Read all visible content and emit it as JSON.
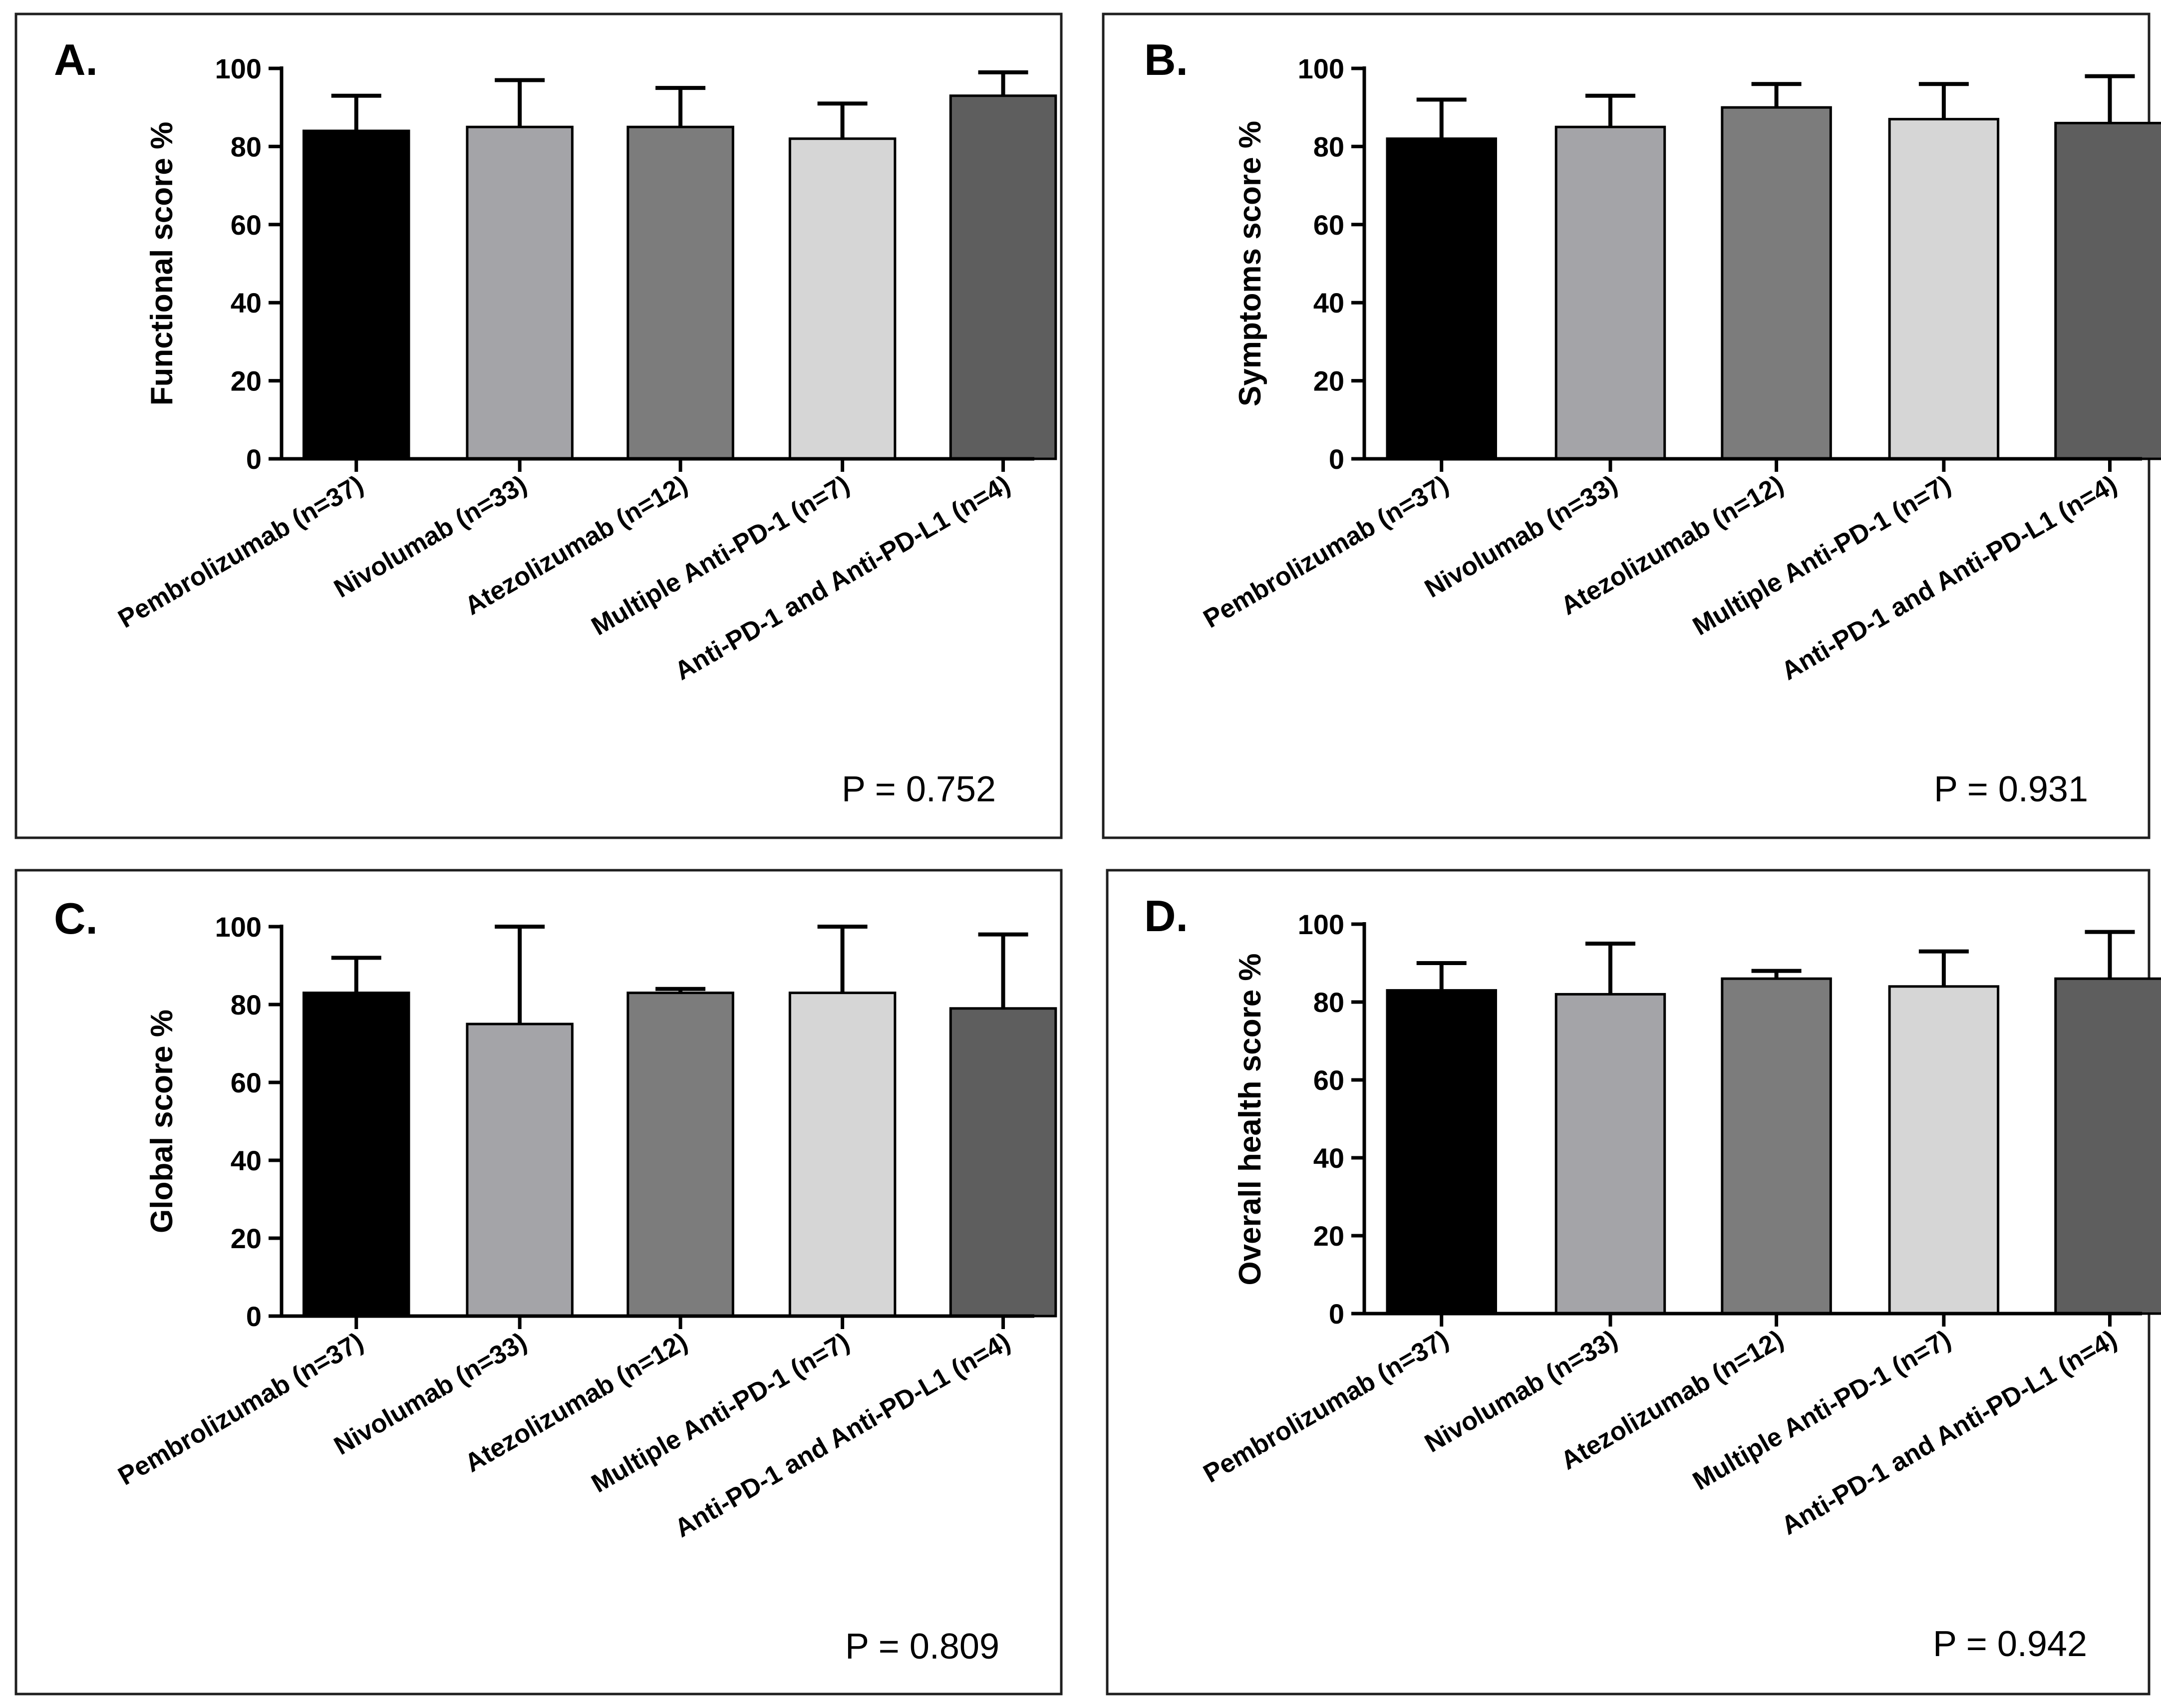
{
  "chart_data": [
    {
      "type": "bar",
      "panel": "A.",
      "title": "",
      "xlabel": "",
      "ylabel": "Functional score %",
      "ylim": [
        0,
        100
      ],
      "yticks": [
        "0",
        "20",
        "40",
        "60",
        "80",
        "100"
      ],
      "categories": [
        "Pembrolizumab (n=37)",
        "Nivolumab (n=33)",
        "Atezolizumab (n=12)",
        "Multiple Anti-PD-1 (n=7)",
        "Anti-PD-1 and Anti-PD-L1 (n=4)"
      ],
      "values": [
        84,
        85,
        85,
        82,
        93
      ],
      "error_upper": [
        93,
        97,
        95,
        91,
        99
      ],
      "colors": [
        "#000000",
        "#a4a4a8",
        "#7c7c7c",
        "#d6d6d6",
        "#5e5e5e"
      ],
      "annotation": "P = 0.752"
    },
    {
      "type": "bar",
      "panel": "B.",
      "title": "",
      "xlabel": "",
      "ylabel": "Symptoms score %",
      "ylim": [
        0,
        100
      ],
      "yticks": [
        "0",
        "20",
        "40",
        "60",
        "80",
        "100"
      ],
      "categories": [
        "Pembrolizumab (n=37)",
        "Nivolumab (n=33)",
        "Atezolizumab (n=12)",
        "Multiple Anti-PD-1 (n=7)",
        "Anti-PD-1 and Anti-PD-L1 (n=4)"
      ],
      "values": [
        82,
        85,
        90,
        87,
        86
      ],
      "error_upper": [
        92,
        93,
        96,
        96,
        98
      ],
      "colors": [
        "#000000",
        "#a4a4a8",
        "#7c7c7c",
        "#d6d6d6",
        "#5e5e5e"
      ],
      "annotation": "P = 0.931"
    },
    {
      "type": "bar",
      "panel": "C.",
      "title": "",
      "xlabel": "",
      "ylabel": "Global score %",
      "ylim": [
        0,
        100
      ],
      "yticks": [
        "0",
        "20",
        "40",
        "60",
        "80",
        "100"
      ],
      "categories": [
        "Pembrolizumab (n=37)",
        "Nivolumab (n=33)",
        "Atezolizumab (n=12)",
        "Multiple Anti-PD-1 (n=7)",
        "Anti-PD-1 and Anti-PD-L1 (n=4)"
      ],
      "values": [
        83,
        75,
        83,
        83,
        79
      ],
      "error_upper": [
        92,
        100,
        84,
        100,
        98
      ],
      "colors": [
        "#000000",
        "#a4a4a8",
        "#7c7c7c",
        "#d6d6d6",
        "#5e5e5e"
      ],
      "annotation": "P = 0.809"
    },
    {
      "type": "bar",
      "panel": "D.",
      "title": "",
      "xlabel": "",
      "ylabel": "Overall health score %",
      "ylim": [
        0,
        100
      ],
      "yticks": [
        "0",
        "20",
        "40",
        "60",
        "80",
        "100"
      ],
      "categories": [
        "Pembrolizumab (n=37)",
        "Nivolumab (n=33)",
        "Atezolizumab (n=12)",
        "Multiple Anti-PD-1 (n=7)",
        "Anti-PD-1 and Anti-PD-L1 (n=4)"
      ],
      "values": [
        83,
        82,
        86,
        84,
        86
      ],
      "error_upper": [
        90,
        95,
        88,
        93,
        98
      ],
      "colors": [
        "#000000",
        "#a4a4a8",
        "#7c7c7c",
        "#d6d6d6",
        "#5e5e5e"
      ],
      "annotation": "P = 0.942"
    }
  ]
}
